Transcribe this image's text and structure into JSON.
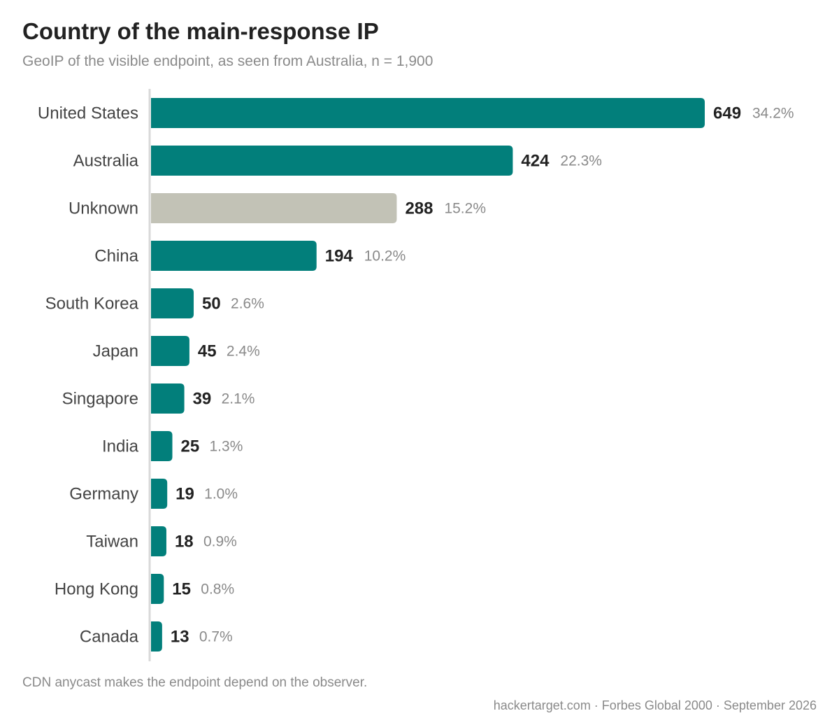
{
  "chart_data": {
    "type": "bar",
    "orientation": "horizontal",
    "title": "Country of the main-response IP",
    "subtitle": "GeoIP of the visible endpoint, as seen from Australia, n = 1,900",
    "categories": [
      "United States",
      "Australia",
      "Unknown",
      "China",
      "South Korea",
      "Japan",
      "Singapore",
      "India",
      "Germany",
      "Taiwan",
      "Hong Kong",
      "Canada"
    ],
    "values": [
      649,
      424,
      288,
      194,
      50,
      45,
      39,
      25,
      19,
      18,
      15,
      13
    ],
    "percent_labels": [
      "34.2%",
      "22.3%",
      "15.2%",
      "10.2%",
      "2.6%",
      "2.4%",
      "2.1%",
      "1.3%",
      "1.0%",
      "0.9%",
      "0.8%",
      "0.7%"
    ],
    "colors": {
      "default": "#027f7b",
      "highlight": {
        "Unknown": "#c2c2b6"
      },
      "axis": "#d9d9d9"
    },
    "xlim": [
      0,
      649
    ],
    "grid": false,
    "legend": "none",
    "note": "CDN anycast makes the endpoint depend on the observer.",
    "source": "hackertarget.com · Forbes Global 2000 · September 2026"
  }
}
